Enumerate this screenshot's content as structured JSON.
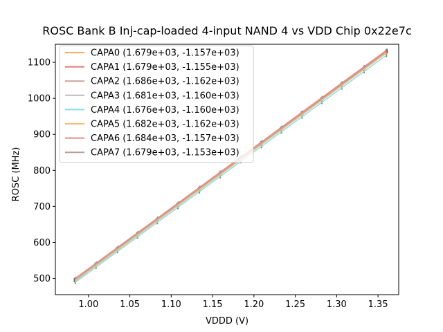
{
  "chart_data": {
    "type": "line",
    "title": "ROSC Bank B Inj-cap-loaded 4-input NAND 4 vs VDD Chip 0x22e7c",
    "xlabel": "VDDD (V)",
    "ylabel": "ROSC (MHz)",
    "xlim": [
      0.96,
      1.375
    ],
    "ylim": [
      455,
      1150
    ],
    "xticks": [
      1.0,
      1.05,
      1.1,
      1.15,
      1.2,
      1.25,
      1.3,
      1.35
    ],
    "xtick_labels": [
      "1.00",
      "1.05",
      "1.10",
      "1.15",
      "1.20",
      "1.25",
      "1.30",
      "1.35"
    ],
    "yticks": [
      500,
      600,
      700,
      800,
      900,
      1000,
      1100
    ],
    "ytick_labels": [
      "500",
      "600",
      "700",
      "800",
      "900",
      "1000",
      "1100"
    ],
    "fit_x_range": [
      0.984,
      1.36
    ],
    "sample_x": [
      0.984,
      1.009,
      1.035,
      1.059,
      1.083,
      1.108,
      1.134,
      1.159,
      1.184,
      1.209,
      1.233,
      1.258,
      1.282,
      1.306,
      1.333,
      1.36
    ],
    "legend_position": "top-left",
    "series": [
      {
        "name": "CAPA0",
        "label": "CAPA0 (1.679e+03, -1.157e+03)",
        "slope": 1679,
        "intercept": -1157,
        "color": "#ffa95a"
      },
      {
        "name": "CAPA1",
        "label": "CAPA1 (1.679e+03, -1.155e+03)",
        "slope": 1679,
        "intercept": -1155,
        "color": "#e5766f"
      },
      {
        "name": "CAPA2",
        "label": "CAPA2 (1.686e+03, -1.162e+03)",
        "slope": 1686,
        "intercept": -1162,
        "color": "#c9a19a"
      },
      {
        "name": "CAPA3",
        "label": "CAPA3 (1.681e+03, -1.160e+03)",
        "slope": 1681,
        "intercept": -1160,
        "color": "#bcbcbc"
      },
      {
        "name": "CAPA4",
        "label": "CAPA4 (1.676e+03, -1.160e+03)",
        "slope": 1676,
        "intercept": -1160,
        "color": "#7fdfe9"
      },
      {
        "name": "CAPA5",
        "label": "CAPA5 (1.682e+03, -1.162e+03)",
        "slope": 1682,
        "intercept": -1162,
        "color": "#ffb870"
      },
      {
        "name": "CAPA6",
        "label": "CAPA6 (1.684e+03, -1.157e+03)",
        "slope": 1684,
        "intercept": -1157,
        "color": "#e58a86"
      },
      {
        "name": "CAPA7",
        "label": "CAPA7 (1.679e+03, -1.153e+03)",
        "slope": 1679,
        "intercept": -1153,
        "color": "#c49a99"
      }
    ],
    "marker_colors": [
      "#1f77b4",
      "#2ca02c",
      "#9467bd",
      "#8c564b",
      "#7f7f7f",
      "#bcbd22",
      "#17becf",
      "#d62728"
    ]
  }
}
